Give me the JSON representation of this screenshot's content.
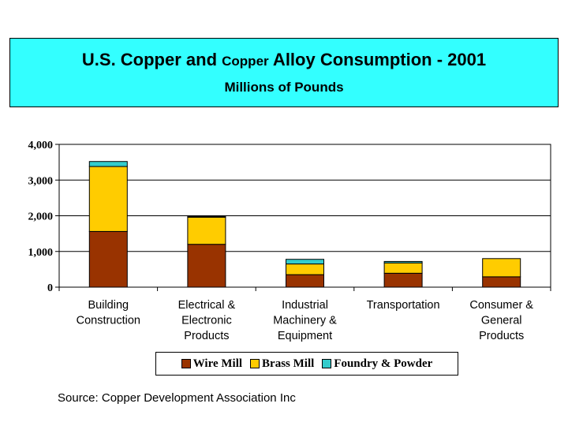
{
  "chart_data": {
    "type": "bar",
    "stacked": true,
    "title_part1": "U.S. Copper and ",
    "title_part2": "Copper",
    "title_part3": " Alloy Consumption - 2001",
    "subtitle": "Millions of Pounds",
    "categories": [
      [
        "Building",
        "Construction"
      ],
      [
        "Electrical &",
        "Electronic",
        "Products"
      ],
      [
        "Industrial",
        "Machinery &",
        "Equipment"
      ],
      [
        "Transportation"
      ],
      [
        "Consumer &",
        "General",
        "Products"
      ]
    ],
    "series": [
      {
        "name": "Wire Mill",
        "color": "#993300",
        "values": [
          1560,
          1200,
          350,
          390,
          290
        ]
      },
      {
        "name": "Brass Mill",
        "color": "#ffcc00",
        "values": [
          1820,
          760,
          300,
          290,
          510
        ]
      },
      {
        "name": "Foundry & Powder",
        "color": "#33cccc",
        "values": [
          140,
          20,
          130,
          40,
          0
        ]
      }
    ],
    "ylim": [
      0,
      4000
    ],
    "yticks": [
      "0",
      "1,000",
      "2,000",
      "3,000",
      "4,000"
    ],
    "ytick_values": [
      0,
      1000,
      2000,
      3000,
      4000
    ],
    "grid": true,
    "legend_position": "bottom"
  },
  "source": "Source: Copper Development Association Inc"
}
